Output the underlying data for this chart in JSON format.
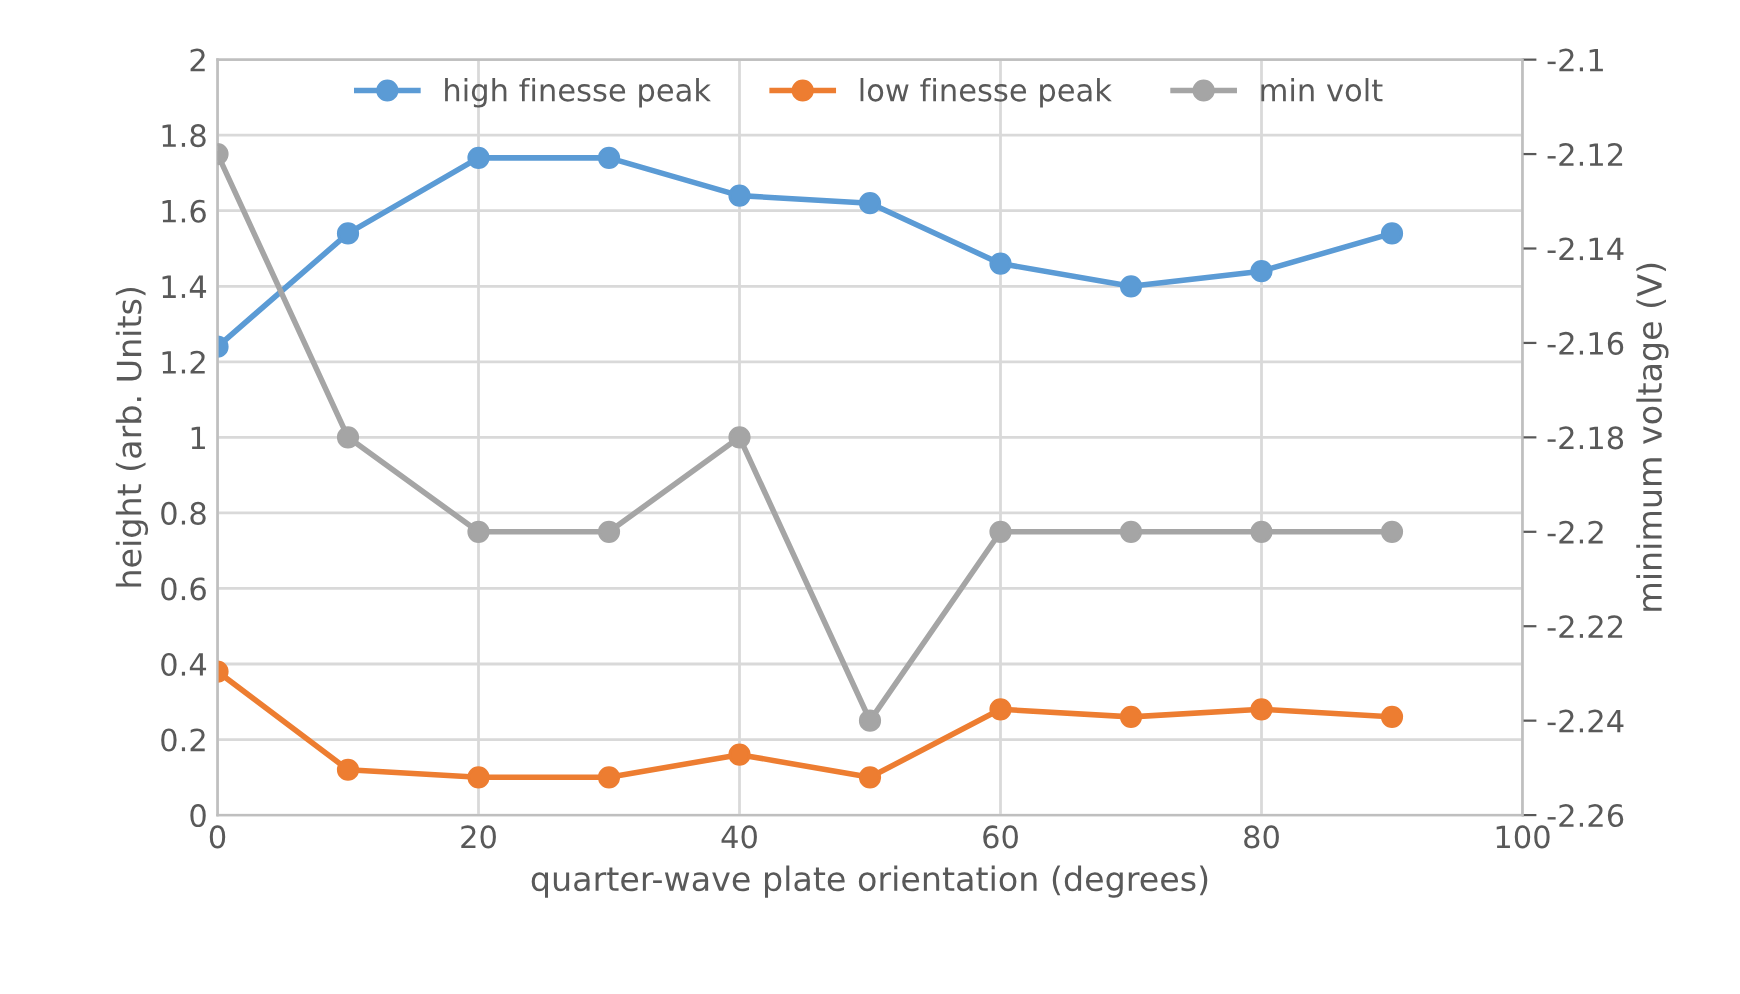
{
  "chart_data": {
    "type": "line",
    "xlabel": "quarter-wave plate orientation (degrees)",
    "ylabel": "height (arb. Units)",
    "y2label": "minimum voltage (V)",
    "x": [
      0,
      10,
      20,
      30,
      40,
      50,
      60,
      70,
      80,
      90
    ],
    "series": [
      {
        "name": "high finesse peak",
        "color": "#5b9bd5",
        "values": [
          1.24,
          1.54,
          1.74,
          1.74,
          1.64,
          1.62,
          1.46,
          1.4,
          1.44,
          1.54
        ]
      },
      {
        "name": "low finesse peak",
        "color": "#ed7d31",
        "values": [
          0.38,
          0.12,
          0.1,
          0.1,
          0.16,
          0.1,
          0.28,
          0.26,
          0.28,
          0.26
        ]
      },
      {
        "name": "min volt",
        "color": "#a5a5a5",
        "axis": "y2",
        "values": [
          -2.12,
          -2.18,
          -2.2,
          -2.2,
          -2.18,
          -2.24,
          -2.2,
          -2.2,
          -2.2,
          -2.2
        ]
      }
    ],
    "xlim": [
      0,
      100
    ],
    "xticks": [
      0,
      20,
      40,
      60,
      80,
      100
    ],
    "ylim": [
      0,
      2
    ],
    "yticks": [
      0,
      0.2,
      0.4,
      0.6,
      0.8,
      1,
      1.2,
      1.4,
      1.6,
      1.8,
      2
    ],
    "y2lim": [
      -2.26,
      -2.1
    ],
    "y2ticks": [
      -2.26,
      -2.24,
      -2.22,
      -2.2,
      -2.18,
      -2.16,
      -2.14,
      -2.12,
      -2.1
    ],
    "grid": true,
    "legend": "top",
    "marker": "circle",
    "line_style": "solid"
  }
}
